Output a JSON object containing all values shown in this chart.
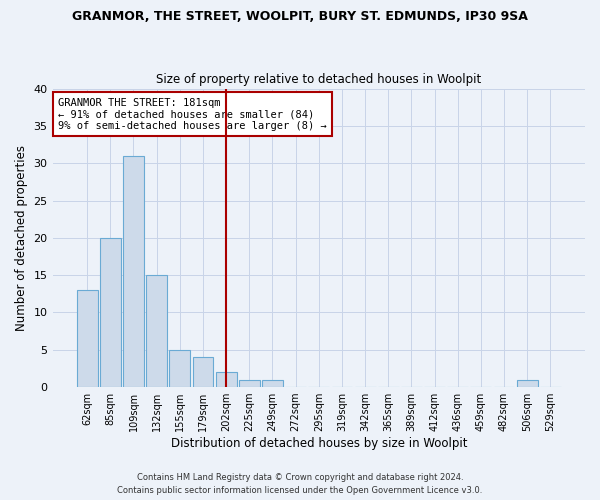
{
  "title1": "GRANMOR, THE STREET, WOOLPIT, BURY ST. EDMUNDS, IP30 9SA",
  "title2": "Size of property relative to detached houses in Woolpit",
  "xlabel": "Distribution of detached houses by size in Woolpit",
  "ylabel": "Number of detached properties",
  "bin_labels": [
    "62sqm",
    "85sqm",
    "109sqm",
    "132sqm",
    "155sqm",
    "179sqm",
    "202sqm",
    "225sqm",
    "249sqm",
    "272sqm",
    "295sqm",
    "319sqm",
    "342sqm",
    "365sqm",
    "389sqm",
    "412sqm",
    "436sqm",
    "459sqm",
    "482sqm",
    "506sqm",
    "529sqm"
  ],
  "bar_values": [
    13,
    20,
    31,
    15,
    5,
    4,
    2,
    1,
    1,
    0,
    0,
    0,
    0,
    0,
    0,
    0,
    0,
    0,
    0,
    1,
    0
  ],
  "bar_color": "#cddaea",
  "bar_edge_color": "#6aaad4",
  "grid_color": "#c8d4e8",
  "vline_x": 6.0,
  "vline_color": "#aa0000",
  "annotation_text": "GRANMOR THE STREET: 181sqm\n← 91% of detached houses are smaller (84)\n9% of semi-detached houses are larger (8) →",
  "annotation_box_color": "white",
  "annotation_box_edge": "#aa0000",
  "ylim": [
    0,
    40
  ],
  "yticks": [
    0,
    5,
    10,
    15,
    20,
    25,
    30,
    35,
    40
  ],
  "footer1": "Contains HM Land Registry data © Crown copyright and database right 2024.",
  "footer2": "Contains public sector information licensed under the Open Government Licence v3.0.",
  "bg_color": "#edf2f9"
}
